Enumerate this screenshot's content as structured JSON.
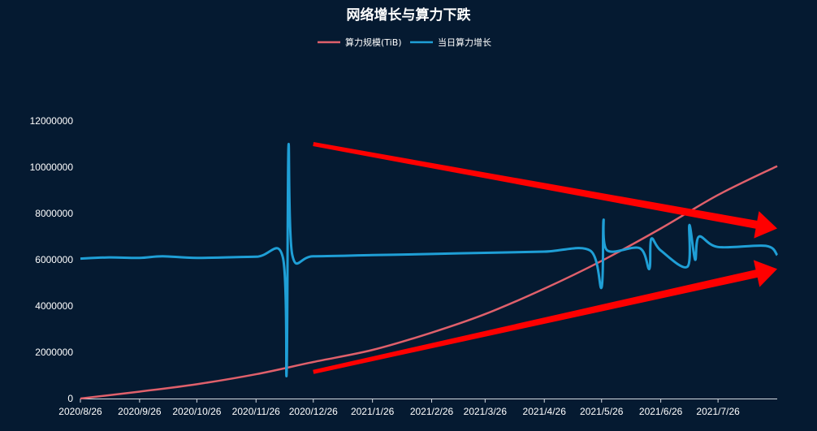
{
  "chart_data": {
    "type": "line",
    "title": "网络增长与算力下跌",
    "xlabel": "",
    "ylabel": "",
    "x_start": "2020/8/26",
    "x_end": "2021/8/26",
    "x_ticks": [
      "2020/8/26",
      "2020/9/26",
      "2020/10/26",
      "2020/11/26",
      "2020/12/26",
      "2021/1/26",
      "2021/2/26",
      "2021/3/26",
      "2021/4/26",
      "2021/5/26",
      "2021/6/26",
      "2021/7/26"
    ],
    "ylim": [
      0,
      12000000
    ],
    "y_ticks": [
      "0",
      "2000000",
      "4000000",
      "6000000",
      "8000000",
      "10000000",
      "12000000"
    ],
    "legend_position": "top",
    "series": [
      {
        "name": "算力规模(TiB)",
        "color": "#e0606b",
        "points": [
          [
            "2020/8/26",
            0
          ],
          [
            "2020/9/26",
            300000
          ],
          [
            "2020/10/26",
            620000
          ],
          [
            "2020/11/26",
            1050000
          ],
          [
            "2020/12/26",
            1580000
          ],
          [
            "2021/1/26",
            2100000
          ],
          [
            "2021/2/26",
            2850000
          ],
          [
            "2021/3/26",
            3650000
          ],
          [
            "2021/4/26",
            4750000
          ],
          [
            "2021/5/26",
            5950000
          ],
          [
            "2021/6/26",
            7350000
          ],
          [
            "2021/7/26",
            8800000
          ],
          [
            "2021/8/26",
            10050000
          ]
        ]
      },
      {
        "name": "当日算力增长",
        "color": "#1f9fd6",
        "points": [
          [
            "2020/8/26",
            6050000
          ],
          [
            "2020/9/10",
            6100000
          ],
          [
            "2020/9/26",
            6080000
          ],
          [
            "2020/10/8",
            6150000
          ],
          [
            "2020/10/26",
            6080000
          ],
          [
            "2020/11/26",
            6130000
          ],
          [
            "2020/12/10",
            6120000
          ],
          [
            "2020/12/12",
            1050000
          ],
          [
            "2020/12/13",
            10900000
          ],
          [
            "2020/12/15",
            6200000
          ],
          [
            "2020/12/26",
            6150000
          ],
          [
            "2021/1/26",
            6200000
          ],
          [
            "2021/2/26",
            6250000
          ],
          [
            "2021/3/26",
            6300000
          ],
          [
            "2021/4/26",
            6350000
          ],
          [
            "2021/5/20",
            6400000
          ],
          [
            "2021/5/26",
            4800000
          ],
          [
            "2021/5/27",
            7700000
          ],
          [
            "2021/5/29",
            6400000
          ],
          [
            "2021/6/15",
            6500000
          ],
          [
            "2021/6/20",
            5600000
          ],
          [
            "2021/6/21",
            6900000
          ],
          [
            "2021/6/26",
            6400000
          ],
          [
            "2021/7/10",
            5700000
          ],
          [
            "2021/7/11",
            7500000
          ],
          [
            "2021/7/14",
            6000000
          ],
          [
            "2021/7/16",
            7000000
          ],
          [
            "2021/7/26",
            6550000
          ],
          [
            "2021/8/20",
            6600000
          ],
          [
            "2021/8/26",
            6200000
          ]
        ]
      }
    ],
    "annotations": [
      {
        "type": "arrow",
        "color": "#ff0000",
        "direction": "down-right",
        "from": [
          "2020/12/26",
          11000000
        ],
        "to": [
          "2021/8/26",
          7350000
        ]
      },
      {
        "type": "arrow",
        "color": "#ff0000",
        "direction": "up-right",
        "from": [
          "2020/12/26",
          1150000
        ],
        "to": [
          "2021/8/26",
          5600000
        ]
      }
    ]
  }
}
